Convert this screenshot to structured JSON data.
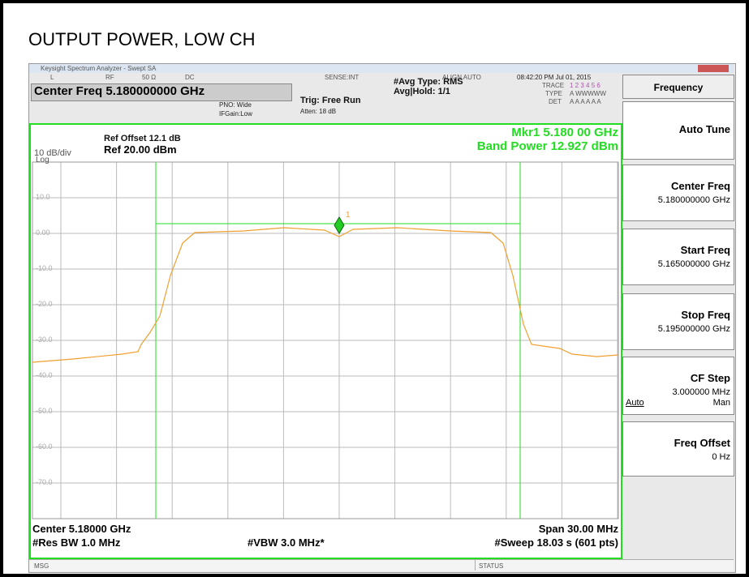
{
  "page_title": "OUTPUT POWER, LOW CH",
  "window": {
    "title": "Keysight Spectrum Analyzer - Swept SA"
  },
  "status_row": {
    "l": "L",
    "rf": "RF",
    "impedance": "50 Ω",
    "coupling": "DC",
    "sense": "SENSE:INT",
    "align": "ALIGN AUTO",
    "datetime": "08:42:20 PM Jul 01, 2015"
  },
  "header": {
    "center_freq": "Center Freq 5.180000000 GHz",
    "pno": "PNO: Wide",
    "ifgain": "IFGain:Low",
    "trig": "Trig: Free Run",
    "atten": "Atten: 18 dB",
    "avg_type": "#Avg Type: RMS",
    "avg_hold": "Avg|Hold: 1/1",
    "trace_label": "TRACE",
    "trace_nums": "1 2 3 4 5 6",
    "type_label": "TYPE",
    "type_vals": "A WWWWW",
    "det_label": "DET",
    "det_vals": "A A A A A A"
  },
  "graph": {
    "ref_offset": "Ref Offset 12.1 dB",
    "scale": "10 dB/div",
    "ref_level": "Ref 20.00 dBm",
    "log": "Log",
    "marker_readout": "Mkr1 5.180 00 GHz",
    "band_power": "Band Power 12.927 dBm",
    "marker_label": "1",
    "y_labels": [
      "10.0",
      "0.00",
      "-10.0",
      "-20.0",
      "-30.0",
      "-40.0",
      "-50.0",
      "-60.0",
      "-70.0"
    ],
    "center": "Center 5.18000 GHz",
    "res_bw": "#Res BW 1.0 MHz",
    "vbw": "#VBW 3.0 MHz*",
    "span": "Span 30.00 MHz",
    "sweep": "#Sweep 18.03 s (601 pts)"
  },
  "softkeys": {
    "menu": "Frequency",
    "keys": [
      {
        "label": "Auto Tune"
      },
      {
        "label": "Center Freq",
        "value": "5.180000000 GHz"
      },
      {
        "label": "Start Freq",
        "value": "5.165000000 GHz"
      },
      {
        "label": "Stop Freq",
        "value": "5.195000000 GHz"
      },
      {
        "label": "CF Step",
        "value": "3.000000 MHz",
        "auto": "Auto",
        "man": "Man"
      },
      {
        "label": "Freq Offset",
        "value": "0 Hz"
      }
    ]
  },
  "footer": {
    "msg": "MSG",
    "status": "STATUS"
  }
}
